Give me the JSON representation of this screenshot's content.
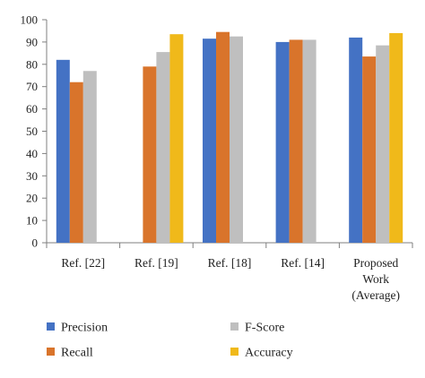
{
  "chart_data": {
    "type": "bar",
    "categories": [
      [
        "Ref. [22]"
      ],
      [
        "Ref. [19]"
      ],
      [
        "Ref. [18]"
      ],
      [
        "Ref. [14]"
      ],
      [
        "Proposed",
        "Work",
        "(Average)"
      ]
    ],
    "series": [
      {
        "name": "Precision",
        "color": "#4472C4",
        "values": [
          82,
          null,
          91.5,
          90,
          92
        ]
      },
      {
        "name": "Recall",
        "color": "#D9742B",
        "values": [
          72,
          79,
          94.5,
          91,
          83.5
        ]
      },
      {
        "name": "F-Score",
        "color": "#BFBFBF",
        "values": [
          77,
          85.5,
          92.5,
          91,
          88.5
        ]
      },
      {
        "name": "Accuracy",
        "color": "#F0B91A",
        "values": [
          null,
          93.5,
          null,
          null,
          94
        ]
      }
    ],
    "yticks": [
      0,
      10,
      20,
      30,
      40,
      50,
      60,
      70,
      80,
      90,
      100
    ],
    "ylim": [
      0,
      100
    ],
    "grid": false,
    "legend_position": "bottom"
  }
}
